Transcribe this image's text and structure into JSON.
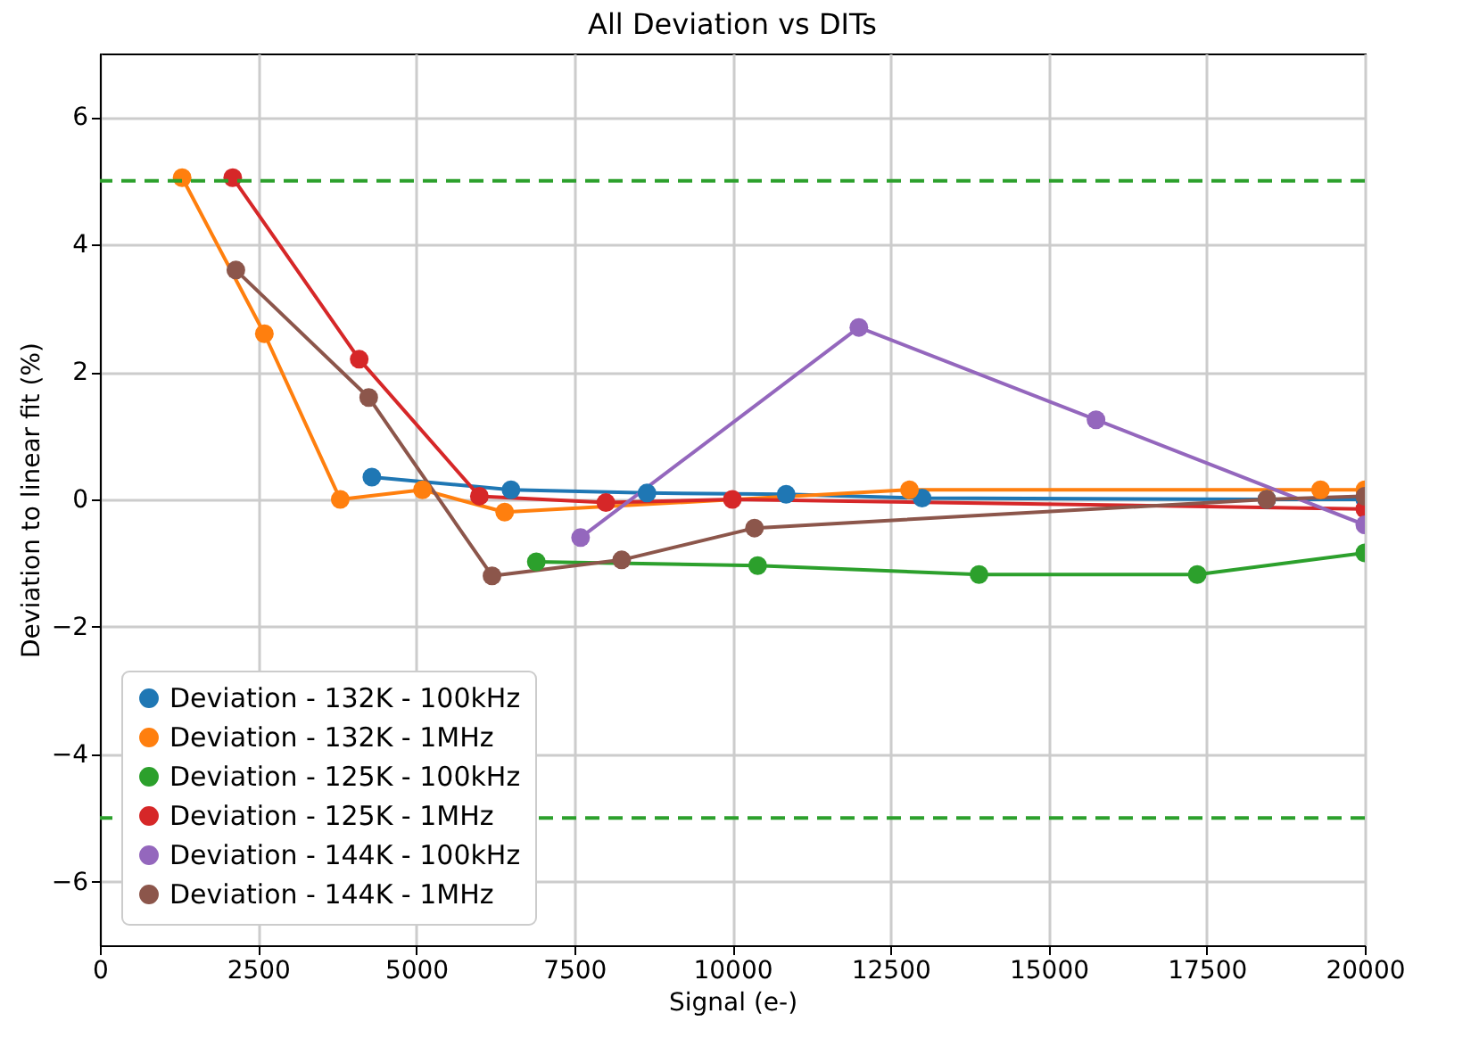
{
  "chart_data": {
    "type": "line",
    "title": "All Deviation vs DITs",
    "xlabel": "Signal (e-)",
    "ylabel": "Deviation to linear fit (%)",
    "xlim": [
      0,
      20000
    ],
    "xticks": [
      0,
      2500,
      5000,
      7500,
      10000,
      12500,
      15000,
      17500,
      20000
    ],
    "ylim": [
      -7,
      7
    ],
    "yticks": [
      -6,
      -4,
      -2,
      0,
      2,
      4,
      6
    ],
    "grid": true,
    "legend": "bottom left",
    "marker": "circle",
    "ref_lines": [
      {
        "axis": "y",
        "value": 5,
        "color": "#2ca02c",
        "line_style": "dashed"
      },
      {
        "axis": "y",
        "value": -5,
        "color": "#2ca02c",
        "line_style": "dashed"
      }
    ],
    "series": [
      {
        "name": "Deviation - 132K - 100kHz",
        "color": "#1f77b4",
        "x": [
          4300,
          6500,
          8650,
          10850,
          13000,
          18450,
          20000
        ],
        "values": [
          0.35,
          0.15,
          0.1,
          0.08,
          0.02,
          0.0,
          0.0
        ]
      },
      {
        "name": "Deviation - 132K - 1MHz",
        "color": "#ff7f0e",
        "x": [
          1300,
          2600,
          3800,
          5100,
          6400,
          12800,
          19300,
          20000
        ],
        "values": [
          5.05,
          2.6,
          0.0,
          0.15,
          -0.2,
          0.15,
          0.15,
          0.15
        ]
      },
      {
        "name": "Deviation - 125K - 100kHz",
        "color": "#2ca02c",
        "x": [
          6900,
          10400,
          13900,
          17350,
          20000
        ],
        "values": [
          -0.98,
          -1.04,
          -1.18,
          -1.18,
          -0.84
        ]
      },
      {
        "name": "Deviation - 125K - 1MHz",
        "color": "#d62728",
        "x": [
          2100,
          4100,
          6000,
          8000,
          10000,
          20000
        ],
        "values": [
          5.05,
          2.2,
          0.05,
          -0.05,
          0.0,
          -0.15
        ]
      },
      {
        "name": "Deviation - 144K - 100kHz",
        "color": "#9467bd",
        "x": [
          7600,
          12000,
          15750,
          20000
        ],
        "values": [
          -0.6,
          2.7,
          1.25,
          -0.4
        ]
      },
      {
        "name": "Deviation - 144K - 1MHz",
        "color": "#8c564b",
        "x": [
          2150,
          4250,
          6200,
          8250,
          10350,
          18450,
          20000
        ],
        "values": [
          3.6,
          1.6,
          -1.2,
          -0.95,
          -0.45,
          0.0,
          0.05
        ]
      }
    ]
  }
}
